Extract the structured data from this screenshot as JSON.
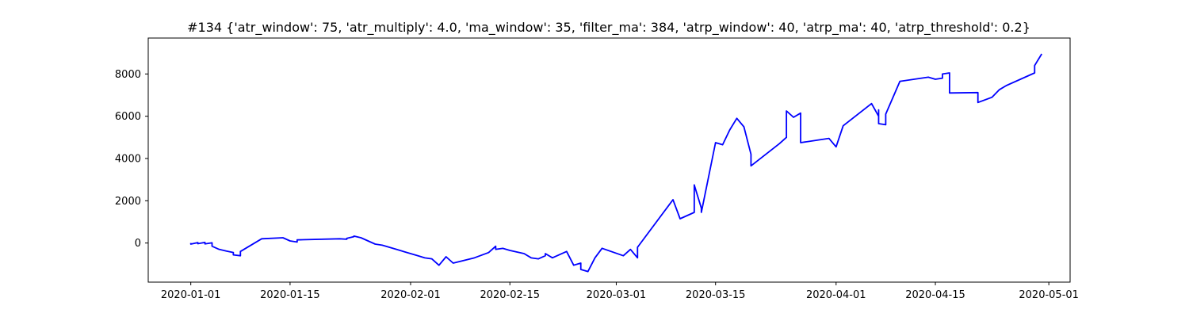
{
  "chart_data": {
    "type": "line",
    "title": "#134 {'atr_window': 75, 'atr_multiply': 4.0, 'ma_window': 35, 'filter_ma': 384, 'atrp_window': 40, 'atrp_ma': 40, 'atrp_threshold': 0.2}",
    "xlabel": "",
    "ylabel": "",
    "xlim": [
      "2019-12-26",
      "2020-05-04"
    ],
    "ylim": [
      -1850,
      9700
    ],
    "grid": false,
    "legend": "none",
    "x_ticks": [
      "2020-01-01",
      "2020-01-15",
      "2020-02-01",
      "2020-02-15",
      "2020-03-01",
      "2020-03-15",
      "2020-04-01",
      "2020-04-15",
      "2020-05-01"
    ],
    "y_ticks": [
      "0",
      "2000",
      "4000",
      "6000",
      "8000"
    ],
    "series": [
      {
        "color": "#0000ff",
        "x": [
          "2020-01-01",
          "2020-01-01",
          "2020-01-02",
          "2020-01-02",
          "2020-01-03",
          "2020-01-03",
          "2020-01-04",
          "2020-01-04",
          "2020-01-05",
          "2020-01-06",
          "2020-01-07",
          "2020-01-07",
          "2020-01-08",
          "2020-01-08",
          "2020-01-11",
          "2020-01-14",
          "2020-01-15",
          "2020-01-16",
          "2020-01-16",
          "2020-01-22",
          "2020-01-23",
          "2020-01-23",
          "2020-01-24",
          "2020-01-24",
          "2020-01-25",
          "2020-01-27",
          "2020-01-28",
          "2020-01-29",
          "2020-01-30",
          "2020-02-02",
          "2020-02-03",
          "2020-02-04",
          "2020-02-05",
          "2020-02-06",
          "2020-02-07",
          "2020-02-10",
          "2020-02-12",
          "2020-02-13",
          "2020-02-13",
          "2020-02-14",
          "2020-02-15",
          "2020-02-17",
          "2020-02-18",
          "2020-02-19",
          "2020-02-20",
          "2020-02-20",
          "2020-02-21",
          "2020-02-23",
          "2020-02-24",
          "2020-02-25",
          "2020-02-25",
          "2020-02-26",
          "2020-02-27",
          "2020-02-28",
          "2020-03-02",
          "2020-03-03",
          "2020-03-04",
          "2020-03-04",
          "2020-03-09",
          "2020-03-10",
          "2020-03-11",
          "2020-03-12",
          "2020-03-12",
          "2020-03-13",
          "2020-03-13",
          "2020-03-15",
          "2020-03-16",
          "2020-03-17",
          "2020-03-18",
          "2020-03-19",
          "2020-03-20",
          "2020-03-20",
          "2020-03-24",
          "2020-03-25",
          "2020-03-25",
          "2020-03-26",
          "2020-03-27",
          "2020-03-27",
          "2020-03-31",
          "2020-04-01",
          "2020-04-02",
          "2020-04-06",
          "2020-04-07",
          "2020-04-07",
          "2020-04-07",
          "2020-04-08",
          "2020-04-08",
          "2020-04-10",
          "2020-04-14",
          "2020-04-15",
          "2020-04-16",
          "2020-04-16",
          "2020-04-17",
          "2020-04-17",
          "2020-04-21",
          "2020-04-21",
          "2020-04-23",
          "2020-04-24",
          "2020-04-25",
          "2020-04-29",
          "2020-04-29",
          "2020-04-30"
        ],
        "y": [
          0,
          -50,
          20,
          -30,
          30,
          -40,
          10,
          -150,
          -300,
          -380,
          -450,
          -560,
          -600,
          -400,
          200,
          250,
          100,
          50,
          150,
          200,
          180,
          220,
          300,
          330,
          250,
          -50,
          -100,
          -200,
          -300,
          -600,
          -700,
          -750,
          -1050,
          -650,
          -950,
          -700,
          -450,
          -150,
          -300,
          -250,
          -350,
          -500,
          -700,
          -750,
          -600,
          -500,
          -700,
          -400,
          -1050,
          -950,
          -1250,
          -1350,
          -700,
          -250,
          -600,
          -300,
          -700,
          -200,
          2050,
          1150,
          1300,
          1450,
          2750,
          1650,
          1450,
          4750,
          4650,
          5350,
          5900,
          5500,
          4200,
          3650,
          4700,
          5000,
          6250,
          5950,
          6150,
          4750,
          4950,
          4550,
          5550,
          6600,
          6000,
          6300,
          5650,
          5600,
          6100,
          7650,
          7850,
          7750,
          7800,
          8000,
          8050,
          7100,
          7120,
          6650,
          6900,
          7250,
          7450,
          8050,
          8400,
          8950
        ]
      }
    ]
  }
}
